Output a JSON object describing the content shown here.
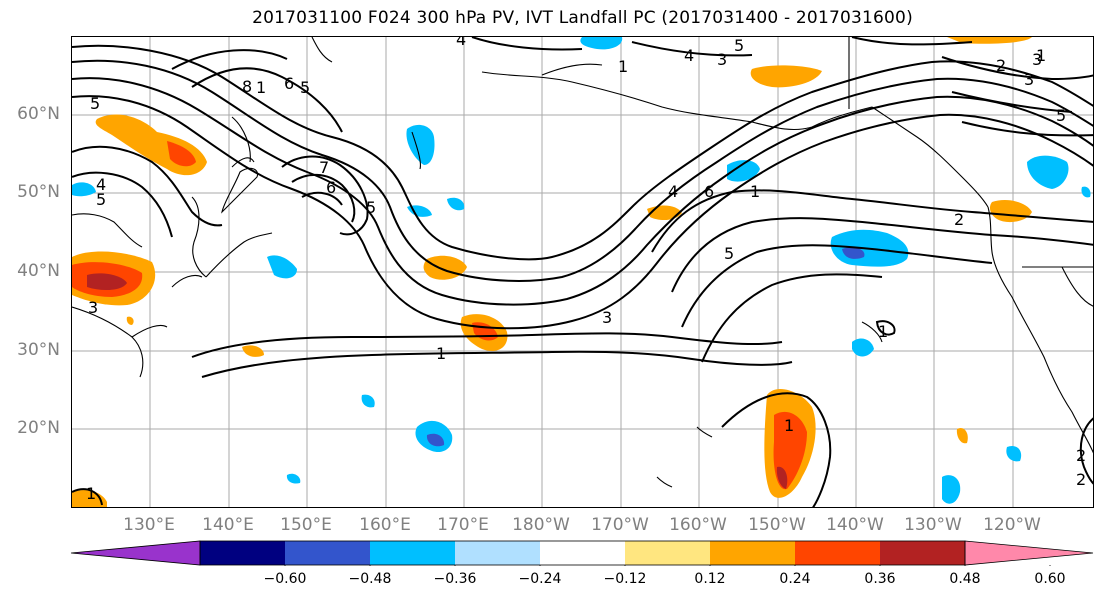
{
  "title": "2017031100 F024 300 hPa PV, IVT Landfall PC (2017031400 - 2017031600)",
  "lat_labels": [
    "60°N",
    "50°N",
    "40°N",
    "30°N",
    "20°N"
  ],
  "lon_labels": [
    "130°E",
    "140°E",
    "150°E",
    "160°E",
    "170°E",
    "180°W",
    "170°W",
    "160°W",
    "150°W",
    "140°W",
    "130°W",
    "120°W"
  ],
  "contour_labels": [
    "8",
    "1",
    "6",
    "5",
    "4",
    "4",
    "5",
    "5",
    "7",
    "6",
    "5",
    "3",
    "4",
    "5",
    "6",
    "4",
    "1",
    "5",
    "1",
    "3",
    "3",
    "1",
    "2",
    "3",
    "5",
    "2",
    "1",
    "1",
    "1",
    "2",
    "2",
    "3",
    "1"
  ],
  "colorbar": {
    "colors": [
      "#9933cc",
      "#000080",
      "#3355cc",
      "#00bfff",
      "#b0e0ff",
      "#ffffff",
      "#ffe680",
      "#ffa500",
      "#ff4500",
      "#b22222",
      "#ff88aa"
    ],
    "ticks": [
      "−0.60",
      "−0.48",
      "−0.36",
      "−0.24",
      "−0.12",
      "0.12",
      "0.24",
      "0.36",
      "0.48",
      "0.60"
    ]
  },
  "colors": {
    "contour": "#000000",
    "gridline": "#aaaaaa",
    "coastline": "#000000",
    "axis_label": "#808080"
  }
}
